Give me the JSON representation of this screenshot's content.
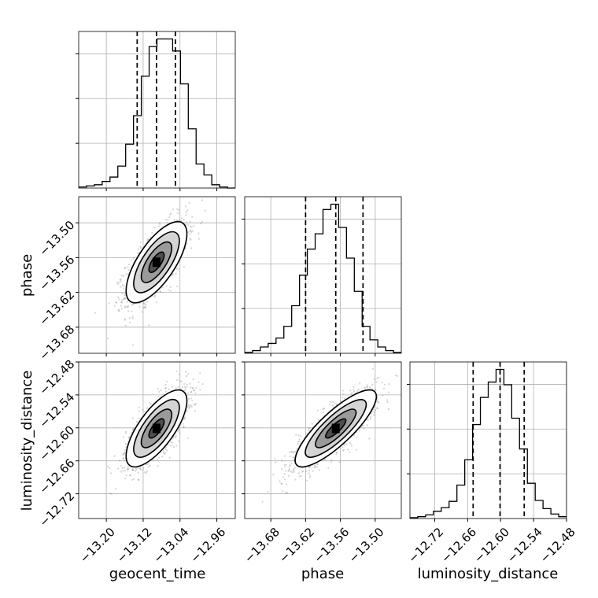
{
  "chart_data": {
    "type": "corner",
    "parameters": [
      "geocent_time",
      "phase",
      "luminosity_distance"
    ],
    "axis_ranges": {
      "geocent_time": [
        -13.26,
        -12.92
      ],
      "phase": [
        -13.725,
        -13.455
      ],
      "luminosity_distance": [
        -12.765,
        -12.48
      ]
    },
    "ticks": {
      "geocent_time": {
        "values": [
          -13.2,
          -13.12,
          -13.04,
          -12.96
        ],
        "labels": [
          "−13.20",
          "−13.12",
          "−13.04",
          "−12.96"
        ]
      },
      "phase": {
        "values": [
          -13.68,
          -13.62,
          -13.56,
          -13.5
        ],
        "labels": [
          "−13.68",
          "−13.62",
          "−13.56",
          "−13.50"
        ]
      },
      "luminosity_distance": {
        "values": [
          -12.72,
          -12.66,
          -12.6,
          -12.54,
          -12.48
        ],
        "labels": [
          "−12.72",
          "−12.66",
          "−12.60",
          "−12.54",
          "−12.48"
        ]
      }
    },
    "ylabels_left": [
      "phase",
      "luminosity_distance"
    ],
    "histograms": [
      {
        "parameter": "geocent_time",
        "bin_edges": [
          -13.26,
          -13.243,
          -13.226,
          -13.209,
          -13.192,
          -13.175,
          -13.158,
          -13.141,
          -13.124,
          -13.107,
          -13.09,
          -13.073,
          -13.056,
          -13.039,
          -13.022,
          -13.005,
          -12.988,
          -12.971,
          -12.954,
          -12.937,
          -12.92
        ],
        "counts": [
          1,
          2,
          3,
          6,
          10,
          20,
          40,
          66,
          102,
          129,
          136,
          136,
          125,
          95,
          54,
          22,
          12,
          3,
          1,
          0
        ],
        "quantiles": [
          -13.133,
          -13.091,
          -13.05
        ]
      },
      {
        "parameter": "phase",
        "bin_edges": [
          -13.725,
          -13.7115,
          -13.698,
          -13.6845,
          -13.671,
          -13.6575,
          -13.644,
          -13.6305,
          -13.617,
          -13.6035,
          -13.59,
          -13.5765,
          -13.563,
          -13.5495,
          -13.536,
          -13.5225,
          -13.509,
          -13.4955,
          -13.482,
          -13.4685,
          -13.455
        ],
        "counts": [
          1,
          3,
          7,
          11,
          17,
          30,
          53,
          87,
          116,
          133,
          160,
          166,
          140,
          106,
          69,
          30,
          15,
          7,
          3,
          1
        ],
        "quantiles": [
          -13.62,
          -13.568,
          -13.521
        ]
      },
      {
        "parameter": "luminosity_distance",
        "bin_edges": [
          -12.765,
          -12.75075,
          -12.7365,
          -12.72225,
          -12.708,
          -12.69375,
          -12.6795,
          -12.66525,
          -12.651,
          -12.63675,
          -12.6225,
          -12.60825,
          -12.594,
          -12.57975,
          -12.5655,
          -12.55125,
          -12.537,
          -12.52275,
          -12.5085,
          -12.49425,
          -12.48
        ],
        "counts": [
          1,
          2,
          4,
          8,
          12,
          19,
          37,
          65,
          104,
          134,
          151,
          165,
          148,
          111,
          77,
          39,
          20,
          11,
          5,
          2
        ],
        "quantiles": [
          -12.65,
          -12.601,
          -12.557
        ]
      }
    ],
    "density_panels": [
      {
        "x": "geocent_time",
        "y": "phase",
        "center": [
          -13.091,
          -13.568
        ],
        "sigma": [
          0.033,
          0.035
        ],
        "correlation": 0.7
      },
      {
        "x": "geocent_time",
        "y": "luminosity_distance",
        "center": [
          -13.091,
          -12.601
        ],
        "sigma": [
          0.033,
          0.035
        ],
        "correlation": 0.72
      },
      {
        "x": "phase",
        "y": "luminosity_distance",
        "center": [
          -13.568,
          -12.601
        ],
        "sigma": [
          0.035,
          0.035
        ],
        "correlation": 0.83
      }
    ],
    "grid": true,
    "colors": {
      "lines": "#000000",
      "grid": "#b0b0b0",
      "points": "#888888",
      "background": "#ffffff"
    }
  }
}
